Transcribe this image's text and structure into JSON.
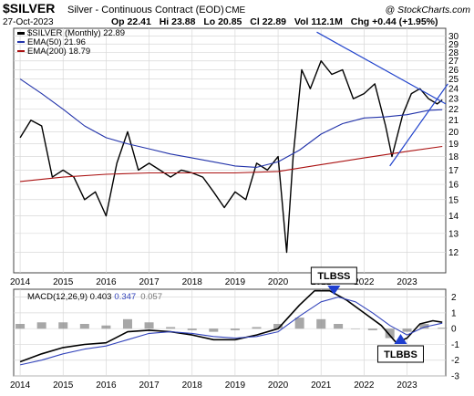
{
  "header": {
    "symbol": "$SILVER",
    "description": "Silver - Continuous Contract (EOD)",
    "source": "CME",
    "date": "27-Oct-2023",
    "brand": "@ StockCharts.com",
    "stats": [
      {
        "label": "Op",
        "value": "22.41"
      },
      {
        "label": "Hi",
        "value": "23.88"
      },
      {
        "label": "Lo",
        "value": "20.85"
      },
      {
        "label": "Cl",
        "value": "22.89"
      },
      {
        "label": "Vol",
        "value": "112.1M"
      },
      {
        "label": "Chg",
        "value": "+0.44 (+1.95%)"
      }
    ]
  },
  "colors": {
    "price": "#000000",
    "ema50": "#2233aa",
    "ema200": "#aa1111",
    "trendline": "#2244cc",
    "macd": "#000000",
    "signal": "#3344bb",
    "hist": "#8a8a8a",
    "arrow": "#1f3fd0",
    "grid": "#d8d8d8"
  },
  "chart_data": [
    {
      "type": "line",
      "panel": "price",
      "title": "$SILVER (Monthly) 22.89",
      "legend": [
        "$SILVER (Monthly) 22.89",
        "EMA(50) 21.96",
        "EMA(200) 18.79"
      ],
      "legend_placement": "top-left",
      "y_scale": "log",
      "ylim": [
        11,
        31
      ],
      "yticks": [
        12,
        13,
        14,
        15,
        16,
        17,
        18,
        19,
        20,
        21,
        22,
        23,
        24,
        25,
        26,
        27,
        28,
        29,
        30
      ],
      "xlim": [
        2013.85,
        2023.9
      ],
      "xticks": [
        "2014",
        "2015",
        "2016",
        "2017",
        "2018",
        "2019",
        "2020",
        "2021",
        "2022",
        "2023"
      ],
      "grid": true,
      "series": [
        {
          "name": "$SILVER (Monthly) 22.89",
          "x": [
            2014.0,
            2014.25,
            2014.5,
            2014.75,
            2015.0,
            2015.25,
            2015.5,
            2015.75,
            2016.0,
            2016.25,
            2016.5,
            2016.75,
            2017.0,
            2017.25,
            2017.5,
            2017.75,
            2018.0,
            2018.25,
            2018.5,
            2018.75,
            2019.0,
            2019.25,
            2019.5,
            2019.75,
            2020.0,
            2020.2,
            2020.35,
            2020.55,
            2020.75,
            2021.0,
            2021.25,
            2021.5,
            2021.75,
            2022.0,
            2022.25,
            2022.5,
            2022.65,
            2022.9,
            2023.1,
            2023.3,
            2023.5,
            2023.7,
            2023.82
          ],
          "values": [
            19.5,
            21.0,
            20.5,
            16.5,
            17.0,
            16.5,
            15.0,
            15.5,
            14.0,
            17.5,
            20.0,
            17.0,
            17.5,
            17.0,
            16.5,
            17.0,
            16.8,
            16.5,
            15.5,
            14.5,
            15.5,
            15.0,
            17.5,
            17.0,
            18.0,
            12.0,
            18.0,
            26.0,
            24.0,
            27.0,
            25.5,
            26.0,
            23.0,
            23.5,
            24.5,
            20.5,
            18.0,
            21.5,
            23.5,
            24.0,
            23.0,
            22.5,
            22.89
          ]
        },
        {
          "name": "EMA(50) 21.96",
          "x": [
            2014.0,
            2014.5,
            2015.0,
            2015.5,
            2016.0,
            2016.5,
            2017.0,
            2017.5,
            2018.0,
            2018.5,
            2019.0,
            2019.5,
            2020.0,
            2020.5,
            2021.0,
            2021.5,
            2022.0,
            2022.5,
            2023.0,
            2023.5,
            2023.82
          ],
          "values": [
            25.0,
            23.5,
            22.0,
            20.5,
            19.5,
            19.0,
            18.6,
            18.2,
            17.9,
            17.6,
            17.3,
            17.2,
            17.6,
            18.5,
            19.8,
            20.7,
            21.2,
            21.3,
            21.5,
            21.9,
            21.96
          ]
        },
        {
          "name": "EMA(200) 18.79",
          "x": [
            2014.0,
            2015.0,
            2016.0,
            2017.0,
            2018.0,
            2019.0,
            2020.0,
            2021.0,
            2022.0,
            2023.0,
            2023.82
          ],
          "values": [
            16.2,
            16.5,
            16.7,
            16.8,
            16.8,
            16.8,
            16.9,
            17.4,
            17.9,
            18.4,
            18.79
          ]
        }
      ],
      "trendlines": [
        {
          "x": [
            2020.9,
            2023.9
          ],
          "values": [
            30.5,
            22.5
          ]
        },
        {
          "x": [
            2022.6,
            2023.95
          ],
          "values": [
            17.3,
            24.5
          ]
        }
      ]
    },
    {
      "type": "line",
      "panel": "macd",
      "title": "MACD(12,26,9) 0.403, 0.347, 0.057",
      "legend": [
        "MACD(12,26,9) 0.403",
        "0.347",
        "0.057"
      ],
      "legend_placement": "top-left",
      "ylim": [
        -3,
        2.5
      ],
      "yticks": [
        -3,
        -2,
        -1,
        0,
        1,
        2
      ],
      "xlim": [
        2013.85,
        2023.9
      ],
      "xticks": [
        "2014",
        "2015",
        "2016",
        "2017",
        "2018",
        "2019",
        "2020",
        "2021",
        "2022",
        "2023"
      ],
      "grid": true,
      "series": [
        {
          "name": "MACD",
          "x": [
            2014.0,
            2014.5,
            2015.0,
            2015.5,
            2016.0,
            2016.5,
            2017.0,
            2017.5,
            2018.0,
            2018.5,
            2019.0,
            2019.5,
            2020.0,
            2020.5,
            2020.85,
            2021.2,
            2021.6,
            2022.0,
            2022.4,
            2022.75,
            2023.0,
            2023.3,
            2023.6,
            2023.82
          ],
          "values": [
            -2.1,
            -1.6,
            -1.2,
            -1.0,
            -0.9,
            -0.2,
            -0.1,
            -0.2,
            -0.4,
            -0.7,
            -0.7,
            -0.4,
            0.0,
            1.5,
            2.4,
            2.4,
            1.8,
            1.0,
            0.2,
            -0.9,
            -0.6,
            0.3,
            0.5,
            0.403
          ]
        },
        {
          "name": "Signal",
          "x": [
            2014.0,
            2014.5,
            2015.0,
            2015.5,
            2016.0,
            2016.5,
            2017.0,
            2017.5,
            2018.0,
            2018.5,
            2019.0,
            2019.5,
            2020.0,
            2020.5,
            2021.0,
            2021.4,
            2021.8,
            2022.2,
            2022.6,
            2023.0,
            2023.4,
            2023.82
          ],
          "values": [
            -2.3,
            -2.0,
            -1.6,
            -1.3,
            -1.1,
            -0.7,
            -0.3,
            -0.2,
            -0.3,
            -0.5,
            -0.6,
            -0.5,
            -0.2,
            0.8,
            1.7,
            2.0,
            1.7,
            1.0,
            0.2,
            -0.4,
            0.1,
            0.347
          ]
        },
        {
          "name": "Histogram",
          "type": "bar",
          "x": [
            2014.0,
            2014.5,
            2015.0,
            2015.5,
            2016.0,
            2016.5,
            2017.0,
            2017.5,
            2018.0,
            2018.5,
            2019.0,
            2019.5,
            2020.0,
            2020.5,
            2021.0,
            2021.4,
            2021.8,
            2022.2,
            2022.6,
            2023.0,
            2023.4,
            2023.82
          ],
          "values": [
            0.3,
            0.4,
            0.4,
            0.3,
            0.2,
            0.6,
            0.4,
            0.1,
            -0.1,
            -0.2,
            -0.1,
            0.1,
            0.3,
            0.7,
            0.6,
            0.3,
            0.0,
            -0.1,
            -0.6,
            -0.2,
            0.3,
            0.057
          ]
        }
      ]
    }
  ],
  "annotations": [
    {
      "label": "TLBSS",
      "x": 2021.3,
      "panel": "macd",
      "arrow": "down"
    },
    {
      "label": "TLBBS",
      "x": 2022.85,
      "panel": "macd",
      "arrow": "up"
    }
  ]
}
